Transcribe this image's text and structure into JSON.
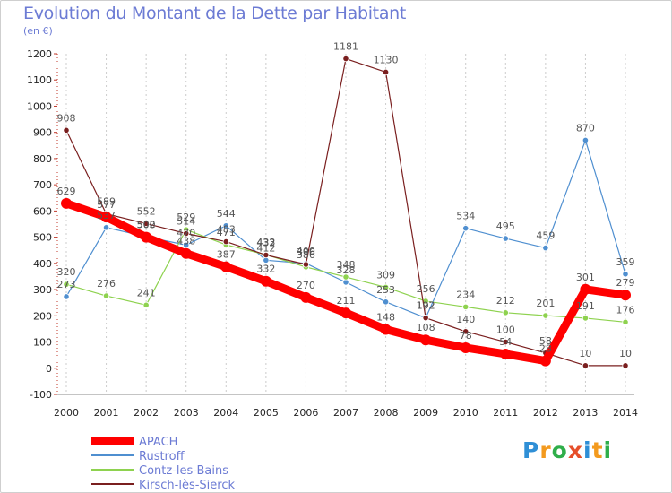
{
  "header": {
    "title": "Evolution du Montant de la Dette par Habitant",
    "unit": "(en €)"
  },
  "brand": {
    "logo_text": "Proxiti",
    "letters": [
      {
        "ch": "P",
        "color": "#2f8fd6"
      },
      {
        "ch": "r",
        "color": "#f39a1e"
      },
      {
        "ch": "o",
        "color": "#2fae4a"
      },
      {
        "ch": "x",
        "color": "#e64f2a"
      },
      {
        "ch": "i",
        "color": "#2f8fd6"
      },
      {
        "ch": "t",
        "color": "#f39a1e"
      },
      {
        "ch": "i",
        "color": "#2fae4a"
      }
    ]
  },
  "chart_data": {
    "type": "line",
    "title": "Evolution du Montant de la Dette par Habitant",
    "ylabel": "(en €)",
    "xlabel": "",
    "x": [
      "2000",
      "2001",
      "2002",
      "2003",
      "2004",
      "2005",
      "2006",
      "2007",
      "2008",
      "2009",
      "2010",
      "2011",
      "2012",
      "2013",
      "2014"
    ],
    "ylim": [
      -100,
      1200
    ],
    "yticks": [
      -100,
      0,
      100,
      200,
      300,
      400,
      500,
      600,
      700,
      800,
      900,
      1000,
      1100,
      1200
    ],
    "grid": "vertical dashed",
    "legend_position": "bottom-left",
    "series": [
      {
        "name": "Rustroff",
        "color": "#4f8fd0",
        "values": [
          273,
          537,
          502,
          470,
          544,
          412,
          400,
          328,
          253,
          192,
          534,
          495,
          459,
          870,
          359
        ],
        "labels": [
          "273",
          "537",
          "502",
          "470",
          "544",
          "412",
          "400",
          "328",
          "253",
          "192",
          "534",
          "495",
          "459",
          "870",
          "359"
        ]
      },
      {
        "name": "Contz-les-Bains",
        "color": "#8ed24f",
        "values": [
          320,
          276,
          241,
          529,
          471,
          433,
          386,
          348,
          309,
          256,
          234,
          212,
          201,
          191,
          176
        ],
        "labels": [
          "320",
          "276",
          "241",
          "529",
          "471",
          "433",
          "386",
          "348",
          "309",
          "256",
          "234",
          "212",
          "201",
          "191",
          "176"
        ]
      },
      {
        "name": "Kirsch-lès-Sierck",
        "color": "#7a1f1f",
        "values": [
          908,
          589,
          552,
          514,
          483,
          432,
          396,
          1181,
          1130,
          192,
          140,
          100,
          58,
          10,
          10
        ],
        "labels": [
          "908",
          "589",
          "552",
          "514",
          "483",
          "432",
          "396",
          "1181",
          "1130",
          "192",
          "140",
          "100",
          "58",
          "10",
          "10"
        ]
      },
      {
        "name": "APACH",
        "color": "#ff0000",
        "values": [
          629,
          577,
          500,
          438,
          387,
          332,
          270,
          211,
          148,
          108,
          78,
          54,
          28,
          301,
          279
        ],
        "labels": [
          "629",
          "577",
          "500",
          "438",
          "387",
          "332",
          "270",
          "211",
          "148",
          "108",
          "78",
          "54",
          "28",
          "301",
          "279"
        ]
      }
    ]
  }
}
